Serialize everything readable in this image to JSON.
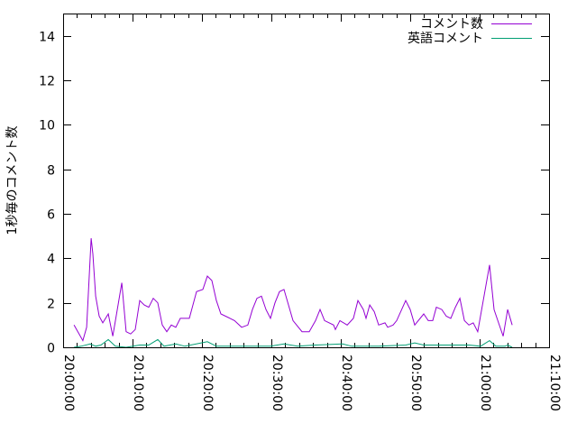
{
  "chart_data": {
    "type": "line",
    "title": "",
    "xlabel": "",
    "ylabel": "1秒毎のコメント数",
    "xlim": [
      "20:00:00",
      "21:10:00"
    ],
    "ylim": [
      0,
      15
    ],
    "xticks": [
      "20:00:00",
      "20:10:00",
      "20:20:00",
      "20:30:00",
      "20:40:00",
      "20:50:00",
      "21:00:00",
      "21:10:00"
    ],
    "yticks": [
      "0",
      "2",
      "4",
      "6",
      "8",
      "10",
      "12",
      "14"
    ],
    "grid": false,
    "legend_position": "top-right",
    "series": [
      {
        "name": "コメント数",
        "color": "#9400d3",
        "x": [
          "20:01:34",
          "20:02:51",
          "20:03:23",
          "20:04:02",
          "20:04:17",
          "20:04:41",
          "20:05:12",
          "20:05:43",
          "20:06:30",
          "20:07:09",
          "20:08:27",
          "20:09:05",
          "20:09:44",
          "20:10:23",
          "20:11:02",
          "20:11:41",
          "20:12:20",
          "20:12:59",
          "20:13:38",
          "20:14:17",
          "20:14:56",
          "20:15:35",
          "20:16:14",
          "20:16:53",
          "20:17:32",
          "20:18:11",
          "20:19:13",
          "20:20:08",
          "20:20:47",
          "20:21:26",
          "20:22:05",
          "20:22:44",
          "20:24:02",
          "20:24:41",
          "20:25:43",
          "20:26:37",
          "20:27:16",
          "20:27:55",
          "20:28:34",
          "20:29:13",
          "20:29:52",
          "20:30:31",
          "20:31:10",
          "20:31:49",
          "20:32:28",
          "20:33:07",
          "20:34:25",
          "20:35:27",
          "20:36:22",
          "20:37:01",
          "20:37:40",
          "20:38:58",
          "20:39:13",
          "20:39:52",
          "20:40:55",
          "20:41:49",
          "20:42:28",
          "20:43:15",
          "20:43:38",
          "20:44:10",
          "20:44:49",
          "20:45:27",
          "20:46:22",
          "20:46:45",
          "20:47:32",
          "20:48:03",
          "20:49:21",
          "20:50:00",
          "20:50:39",
          "20:51:57",
          "20:52:36",
          "20:53:15",
          "20:53:46",
          "20:54:33",
          "20:55:12",
          "20:55:51",
          "20:56:30",
          "20:57:09",
          "20:57:48",
          "20:58:27",
          "20:59:05",
          "20:59:44",
          "21:01:26",
          "21:02:05",
          "21:02:44",
          "21:03:23",
          "21:04:02",
          "21:04:41"
        ],
        "values": [
          1.0,
          0.3,
          0.9,
          4.9,
          4.2,
          2.3,
          1.4,
          1.1,
          1.5,
          0.5,
          2.9,
          0.7,
          0.6,
          0.8,
          2.1,
          1.9,
          1.8,
          2.2,
          2.0,
          1.0,
          0.7,
          1.0,
          0.9,
          1.3,
          1.3,
          1.3,
          2.5,
          2.6,
          3.2,
          3.0,
          2.1,
          1.5,
          1.3,
          1.2,
          0.9,
          1.0,
          1.7,
          2.2,
          2.3,
          1.7,
          1.3,
          2.0,
          2.5,
          2.6,
          1.9,
          1.2,
          0.7,
          0.7,
          1.2,
          1.7,
          1.2,
          1.0,
          0.8,
          1.2,
          1.0,
          1.3,
          2.1,
          1.7,
          1.3,
          1.9,
          1.6,
          1.0,
          1.1,
          0.9,
          1.0,
          1.2,
          2.1,
          1.7,
          1.0,
          1.5,
          1.2,
          1.2,
          1.8,
          1.7,
          1.4,
          1.3,
          1.8,
          2.2,
          1.2,
          1.0,
          1.1,
          0.7,
          3.7,
          1.7,
          1.1,
          0.5,
          1.7,
          1.0
        ]
      },
      {
        "name": "英語コメント",
        "color": "#009e73",
        "x": [
          "20:01:34",
          "20:02:36",
          "20:03:54",
          "20:04:41",
          "20:05:27",
          "20:06:30",
          "20:07:32",
          "20:09:05",
          "20:11:02",
          "20:12:20",
          "20:13:38",
          "20:14:33",
          "20:16:14",
          "20:17:32",
          "20:20:47",
          "20:22:05",
          "20:25:58",
          "20:29:52",
          "20:31:49",
          "20:33:46",
          "20:36:22",
          "20:40:16",
          "20:41:34",
          "20:45:27",
          "20:49:21",
          "20:50:39",
          "20:51:57",
          "20:55:51",
          "20:58:27",
          "21:00:08",
          "21:01:26",
          "21:02:20",
          "21:03:38",
          "21:04:02",
          "21:04:41"
        ],
        "values": [
          0,
          0.05,
          0.15,
          0.05,
          0.1,
          0.35,
          0.05,
          0,
          0.1,
          0.1,
          0.35,
          0.05,
          0.15,
          0.05,
          0.25,
          0.05,
          0.05,
          0.05,
          0.15,
          0.05,
          0.1,
          0.15,
          0.05,
          0.05,
          0.1,
          0.2,
          0.1,
          0.1,
          0.1,
          0.05,
          0.3,
          0.05,
          0.05,
          0.1,
          0
        ]
      }
    ]
  }
}
